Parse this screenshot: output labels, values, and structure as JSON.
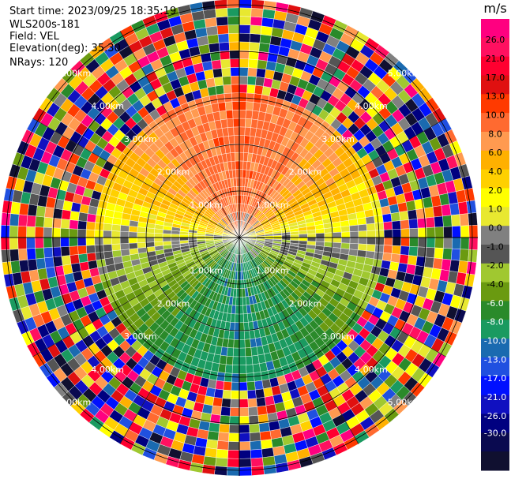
{
  "header": {
    "start_time": "Start time: 2023/09/25 18:35:19",
    "instrument": "WLS200s-181",
    "field": "Field: VEL",
    "elevation": "Elevation(deg): 35.30",
    "nrays": "NRays: 120"
  },
  "chart_data": {
    "type": "heatmap",
    "projection": "polar-ppi",
    "field": "VEL",
    "unit": "m/s",
    "nrays": 120,
    "range_rings_km": [
      1,
      2,
      3,
      4,
      5
    ],
    "ring_labels": [
      "1.00km",
      "2.00km",
      "3.00km",
      "4.00km",
      "5.00km"
    ],
    "colorbar": {
      "label": "m/s",
      "ticks": [
        "26.0",
        "21.0",
        "17.0",
        "13.0",
        "10.0",
        "8.0",
        "6.0",
        "4.0",
        "2.0",
        "1.0",
        "0.0",
        "-1.0",
        "-2.0",
        "-4.0",
        "-6.0",
        "-8.0",
        "-10.0",
        "-13.0",
        "-17.0",
        "-21.0",
        "-26.0",
        "-30.0"
      ],
      "colors": [
        "#ff0080",
        "#ff1060",
        "#ff0030",
        "#e01010",
        "#ff3a00",
        "#ff6a30",
        "#ff9a50",
        "#ffb000",
        "#ffd000",
        "#ffff00",
        "#e8e830",
        "#808080",
        "#555555",
        "#a0c830",
        "#6a9a10",
        "#2a8a2a",
        "#1a9a60",
        "#1a6ab0",
        "#2050e0",
        "#0010ff",
        "#1010c0",
        "#000080",
        "#0a0a50",
        "#101030"
      ]
    }
  }
}
